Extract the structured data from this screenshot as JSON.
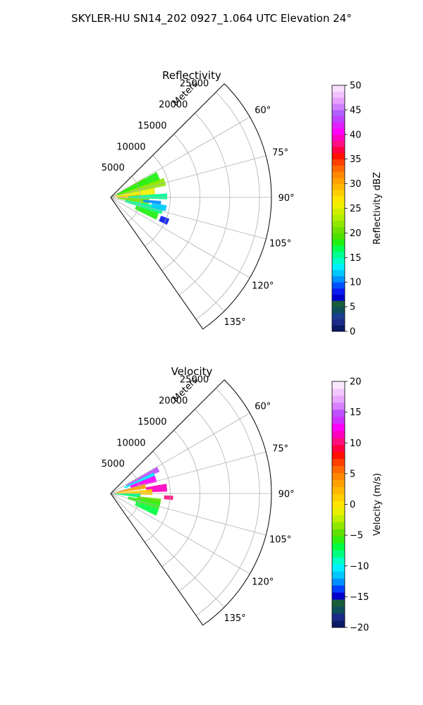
{
  "figure": {
    "suptitle": "SKYLER-HU  SN14_202  0927_1.064 UTC Elevation 24°"
  },
  "chart_data": [
    {
      "type": "heatmap",
      "projection": "polar-sector",
      "title": "Reflectivity",
      "range_label": "Meters",
      "azimuth_range_deg": [
        45,
        145
      ],
      "range_limit_m": [
        0,
        27000
      ],
      "range_ticks": [
        "5000",
        "10000",
        "15000",
        "20000",
        "25000"
      ],
      "range_tick_values": [
        5000,
        10000,
        15000,
        20000,
        25000
      ],
      "azimuth_ticks": [
        "60°",
        "75°",
        "90°",
        "105°",
        "120°",
        "135°"
      ],
      "azimuth_tick_values": [
        60,
        75,
        90,
        105,
        120,
        135
      ],
      "grid": true,
      "colorbar": {
        "label": "Reflectivity dBZ",
        "min": 0,
        "max": 50,
        "ticks": [
          "0",
          "5",
          "10",
          "15",
          "20",
          "25",
          "30",
          "35",
          "40",
          "45",
          "50"
        ],
        "tick_values": [
          0,
          5,
          10,
          15,
          20,
          25,
          30,
          35,
          40,
          45,
          50
        ],
        "colors": [
          "#0a1a66",
          "#1c2a8a",
          "#1d3d8f",
          "#0e4f5a",
          "#1a5d3a",
          "#0000cc",
          "#0a1af0",
          "#0050ff",
          "#0090ff",
          "#00c8ff",
          "#00f0ff",
          "#00ffc8",
          "#00ff90",
          "#00ff50",
          "#20f010",
          "#50e000",
          "#70e000",
          "#90e800",
          "#b0f000",
          "#d0f000",
          "#f0f000",
          "#ffe600",
          "#ffd000",
          "#ffb800",
          "#ffa000",
          "#ff8800",
          "#ff6800",
          "#ff4000",
          "#ff1000",
          "#ff0040",
          "#ff1080",
          "#ff00c0",
          "#ff00ff",
          "#e020ff",
          "#c040ff",
          "#b060ff",
          "#d080ff",
          "#e8a0ff",
          "#f0c0ff",
          "#f8e0ff"
        ]
      },
      "echo_regions": [
        {
          "az": [
            60,
            70
          ],
          "r": [
            500,
            6500
          ],
          "value": 24
        },
        {
          "az": [
            61,
            73
          ],
          "r": [
            1200,
            8800
          ],
          "value": 18
        },
        {
          "az": [
            70,
            78
          ],
          "r": [
            1500,
            9500
          ],
          "value": 22
        },
        {
          "az": [
            78,
            86
          ],
          "r": [
            1000,
            7500
          ],
          "value": 26
        },
        {
          "az": [
            84,
            90
          ],
          "r": [
            500,
            5000
          ],
          "value": 29
        },
        {
          "az": [
            86,
            92
          ],
          "r": [
            3000,
            9500
          ],
          "value": 16
        },
        {
          "az": [
            92,
            100
          ],
          "r": [
            1200,
            6500
          ],
          "value": 20
        },
        {
          "az": [
            94,
            98
          ],
          "r": [
            5500,
            8500
          ],
          "value": 10
        },
        {
          "az": [
            100,
            108
          ],
          "r": [
            2500,
            9000
          ],
          "value": 15
        },
        {
          "az": [
            108,
            116
          ],
          "r": [
            4500,
            8500
          ],
          "value": 18
        },
        {
          "az": [
            110,
            116
          ],
          "r": [
            9000,
            10500
          ],
          "value": 8
        },
        {
          "az": [
            98,
            104
          ],
          "r": [
            7000,
            9500
          ],
          "value": 12
        }
      ]
    },
    {
      "type": "heatmap",
      "projection": "polar-sector",
      "title": "Velocity",
      "range_label": "Meters",
      "azimuth_range_deg": [
        45,
        145
      ],
      "range_limit_m": [
        0,
        27000
      ],
      "range_ticks": [
        "5000",
        "10000",
        "15000",
        "20000",
        "25000"
      ],
      "range_tick_values": [
        5000,
        10000,
        15000,
        20000,
        25000
      ],
      "azimuth_ticks": [
        "60°",
        "75°",
        "90°",
        "105°",
        "120°",
        "135°"
      ],
      "azimuth_tick_values": [
        60,
        75,
        90,
        105,
        120,
        135
      ],
      "grid": true,
      "colorbar": {
        "label": "Velocity (m/s)",
        "min": -20,
        "max": 20,
        "ticks": [
          "−20",
          "−15",
          "−10",
          "−5",
          "0",
          "5",
          "10",
          "15",
          "20"
        ],
        "tick_values": [
          -20,
          -15,
          -10,
          -5,
          0,
          5,
          10,
          15,
          20
        ],
        "colors": [
          "#0a1a66",
          "#1c2a8a",
          "#0e4f5a",
          "#1a5d3a",
          "#0000cc",
          "#0040ff",
          "#0090ff",
          "#00c8ff",
          "#00f0ff",
          "#00ffc8",
          "#00ff80",
          "#00ff40",
          "#30f010",
          "#60e000",
          "#90e800",
          "#c0f000",
          "#e8f000",
          "#ffe600",
          "#ffd000",
          "#ffb800",
          "#ffa000",
          "#ff8800",
          "#ff6800",
          "#ff4000",
          "#ff1000",
          "#ff0040",
          "#ff1080",
          "#ff00c0",
          "#ff00ff",
          "#d030ff",
          "#c050ff",
          "#d880ff",
          "#e8a8ff",
          "#f4c8ff",
          "#fae8ff"
        ]
      },
      "echo_regions": [
        {
          "az": [
            60,
            66
          ],
          "r": [
            3000,
            9000
          ],
          "value": 15
        },
        {
          "az": [
            64,
            70
          ],
          "r": [
            2500,
            8000
          ],
          "value": -10
        },
        {
          "az": [
            68,
            76
          ],
          "r": [
            3500,
            8000
          ],
          "value": 12
        },
        {
          "az": [
            74,
            82
          ],
          "r": [
            1000,
            6000
          ],
          "value": 3
        },
        {
          "az": [
            80,
            88
          ],
          "r": [
            6000,
            9500
          ],
          "value": 11
        },
        {
          "az": [
            84,
            92
          ],
          "r": [
            500,
            7000
          ],
          "value": 1
        },
        {
          "az": [
            90,
            98
          ],
          "r": [
            500,
            5000
          ],
          "value": -8
        },
        {
          "az": [
            96,
            102
          ],
          "r": [
            4500,
            8500
          ],
          "value": -5
        },
        {
          "az": [
            100,
            108
          ],
          "r": [
            3000,
            8500
          ],
          "value": -6
        },
        {
          "az": [
            108,
            116
          ],
          "r": [
            4500,
            8500
          ],
          "value": -7
        },
        {
          "az": [
            92,
            96
          ],
          "r": [
            9000,
            10500
          ],
          "value": 10
        }
      ]
    }
  ]
}
